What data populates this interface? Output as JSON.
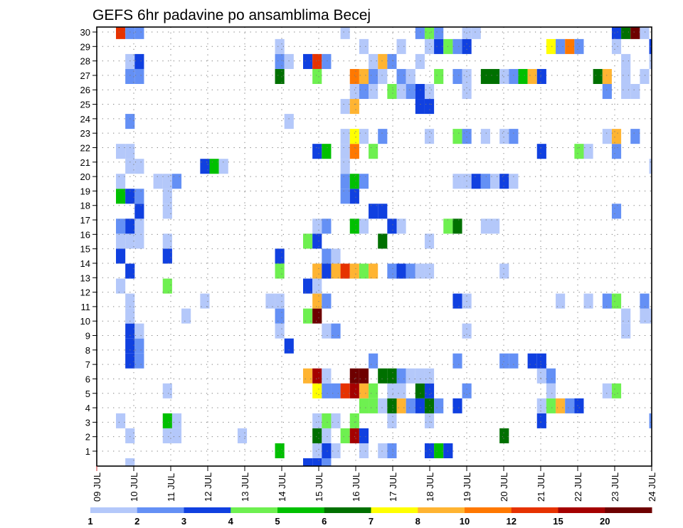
{
  "chart_data": {
    "type": "heatmap",
    "title": "GEFS 6hr padavine po ansamblima Becej",
    "xlabel": "",
    "ylabel": "",
    "x_step": "6hr",
    "x_ticks": [
      "09 JUL",
      "10 JUL",
      "11 JUL",
      "12 JUL",
      "13 JUL",
      "14 JUL",
      "15 JUL",
      "16 JUL",
      "17 JUL",
      "18 JUL",
      "19 JUL",
      "20 JUL",
      "21 JUL",
      "22 JUL",
      "23 JUL",
      "24 JUL"
    ],
    "y_ticks": [
      "1",
      "2",
      "3",
      "4",
      "5",
      "6",
      "7",
      "8",
      "9",
      "10",
      "11",
      "12",
      "13",
      "14",
      "15",
      "16",
      "17",
      "18",
      "19",
      "20",
      "21",
      "22",
      "23",
      "24",
      "25",
      "26",
      "27",
      "28",
      "29",
      "30"
    ],
    "ylim": [
      1,
      30
    ],
    "grid": true,
    "levels": [
      "1",
      "2",
      "3",
      "4",
      "5",
      "6",
      "7",
      "8",
      "10",
      "12",
      "15",
      "20"
    ],
    "colors": [
      "#b4c8fa",
      "#6490f5",
      "#1040e0",
      "#6ef050",
      "#00c000",
      "#007000",
      "#ffff00",
      "#ffb432",
      "#ff7800",
      "#e63200",
      "#a50000",
      "#6e0000"
    ],
    "cells_note": "per ensemble member row: [6hr-step index from 09 JUL 00Z, color level index]",
    "rows": {
      "30": [
        [
          2,
          9
        ],
        [
          3,
          1
        ],
        [
          4,
          1
        ],
        [
          26,
          0
        ],
        [
          34,
          1
        ],
        [
          35,
          3
        ],
        [
          36,
          1
        ],
        [
          39,
          0
        ],
        [
          40,
          0
        ],
        [
          55,
          2
        ],
        [
          56,
          5
        ],
        [
          57,
          11
        ],
        [
          58,
          0
        ]
      ],
      "29": [
        [
          19,
          0
        ],
        [
          28,
          0
        ],
        [
          32,
          0
        ],
        [
          35,
          0
        ],
        [
          36,
          2
        ],
        [
          37,
          3
        ],
        [
          38,
          1
        ],
        [
          39,
          2
        ],
        [
          48,
          6
        ],
        [
          49,
          1
        ],
        [
          50,
          8
        ],
        [
          51,
          1
        ],
        [
          55,
          0
        ],
        [
          59,
          2
        ]
      ],
      "28": [
        [
          3,
          0
        ],
        [
          4,
          2
        ],
        [
          19,
          1
        ],
        [
          20,
          0
        ],
        [
          22,
          2
        ],
        [
          23,
          9
        ],
        [
          24,
          1
        ],
        [
          29,
          0
        ],
        [
          30,
          7
        ],
        [
          31,
          1
        ],
        [
          34,
          0
        ],
        [
          56,
          0
        ],
        [
          59,
          0
        ]
      ],
      "27": [
        [
          3,
          1
        ],
        [
          4,
          1
        ],
        [
          19,
          5
        ],
        [
          23,
          3
        ],
        [
          27,
          8
        ],
        [
          28,
          7
        ],
        [
          29,
          1
        ],
        [
          30,
          0
        ],
        [
          32,
          1
        ],
        [
          33,
          0
        ],
        [
          36,
          3
        ],
        [
          38,
          1
        ],
        [
          39,
          0
        ],
        [
          41,
          5
        ],
        [
          42,
          5
        ],
        [
          43,
          0
        ],
        [
          44,
          1
        ],
        [
          45,
          4
        ],
        [
          46,
          7
        ],
        [
          47,
          2
        ],
        [
          53,
          5
        ],
        [
          54,
          7
        ],
        [
          56,
          0
        ],
        [
          58,
          0
        ]
      ],
      "26": [
        [
          27,
          0
        ],
        [
          28,
          1
        ],
        [
          29,
          0
        ],
        [
          31,
          3
        ],
        [
          32,
          0
        ],
        [
          33,
          1
        ],
        [
          34,
          2
        ],
        [
          35,
          0
        ],
        [
          39,
          0
        ],
        [
          54,
          1
        ],
        [
          56,
          0
        ],
        [
          57,
          0
        ]
      ],
      "25": [
        [
          26,
          0
        ],
        [
          27,
          7
        ],
        [
          34,
          2
        ],
        [
          35,
          2
        ]
      ],
      "24": [
        [
          3,
          1
        ],
        [
          20,
          0
        ]
      ],
      "23": [
        [
          26,
          0
        ],
        [
          27,
          6
        ],
        [
          28,
          0
        ],
        [
          30,
          1
        ],
        [
          35,
          0
        ],
        [
          38,
          3
        ],
        [
          39,
          1
        ],
        [
          41,
          0
        ],
        [
          43,
          0
        ],
        [
          44,
          1
        ],
        [
          54,
          0
        ],
        [
          55,
          7
        ],
        [
          57,
          1
        ]
      ],
      "22": [
        [
          2,
          0
        ],
        [
          3,
          0
        ],
        [
          23,
          2
        ],
        [
          24,
          4
        ],
        [
          26,
          0
        ],
        [
          27,
          8
        ],
        [
          29,
          3
        ],
        [
          47,
          2
        ],
        [
          51,
          3
        ],
        [
          52,
          0
        ],
        [
          55,
          1
        ]
      ],
      "21": [
        [
          3,
          0
        ],
        [
          4,
          0
        ],
        [
          11,
          2
        ],
        [
          12,
          4
        ],
        [
          13,
          0
        ],
        [
          26,
          0
        ],
        [
          59,
          0
        ]
      ],
      "20": [
        [
          2,
          0
        ],
        [
          6,
          0
        ],
        [
          7,
          0
        ],
        [
          8,
          1
        ],
        [
          26,
          1
        ],
        [
          27,
          4
        ],
        [
          28,
          1
        ],
        [
          38,
          0
        ],
        [
          39,
          0
        ],
        [
          40,
          2
        ],
        [
          41,
          1
        ],
        [
          42,
          0
        ],
        [
          43,
          2
        ],
        [
          44,
          0
        ]
      ],
      "19": [
        [
          2,
          4
        ],
        [
          3,
          2
        ],
        [
          4,
          1
        ],
        [
          7,
          0
        ],
        [
          26,
          1
        ],
        [
          27,
          2
        ]
      ],
      "18": [
        [
          4,
          2
        ],
        [
          7,
          0
        ],
        [
          29,
          2
        ],
        [
          30,
          2
        ],
        [
          55,
          1
        ]
      ],
      "17": [
        [
          2,
          1
        ],
        [
          3,
          2
        ],
        [
          4,
          0
        ],
        [
          23,
          0
        ],
        [
          24,
          1
        ],
        [
          27,
          4
        ],
        [
          28,
          0
        ],
        [
          31,
          2
        ],
        [
          32,
          0
        ],
        [
          37,
          3
        ],
        [
          38,
          5
        ],
        [
          41,
          0
        ],
        [
          42,
          0
        ]
      ],
      "16": [
        [
          2,
          0
        ],
        [
          3,
          0
        ],
        [
          4,
          0
        ],
        [
          7,
          0
        ],
        [
          22,
          3
        ],
        [
          23,
          2
        ],
        [
          30,
          5
        ],
        [
          35,
          0
        ]
      ],
      "15": [
        [
          2,
          2
        ],
        [
          7,
          2
        ],
        [
          19,
          2
        ],
        [
          24,
          1
        ],
        [
          25,
          0
        ]
      ],
      "14": [
        [
          3,
          2
        ],
        [
          19,
          3
        ],
        [
          23,
          7
        ],
        [
          24,
          2
        ],
        [
          25,
          7
        ],
        [
          26,
          9
        ],
        [
          27,
          7
        ],
        [
          28,
          3
        ],
        [
          29,
          7
        ],
        [
          31,
          1
        ],
        [
          32,
          2
        ],
        [
          33,
          1
        ],
        [
          34,
          0
        ],
        [
          35,
          0
        ],
        [
          43,
          0
        ]
      ],
      "13": [
        [
          2,
          0
        ],
        [
          7,
          3
        ],
        [
          22,
          2
        ],
        [
          23,
          0
        ]
      ],
      "12": [
        [
          3,
          0
        ],
        [
          11,
          0
        ],
        [
          18,
          0
        ],
        [
          19,
          0
        ],
        [
          23,
          7
        ],
        [
          24,
          1
        ],
        [
          38,
          2
        ],
        [
          39,
          0
        ],
        [
          49,
          0
        ],
        [
          52,
          0
        ],
        [
          54,
          1
        ],
        [
          55,
          3
        ],
        [
          58,
          1
        ]
      ],
      "11": [
        [
          3,
          0
        ],
        [
          9,
          0
        ],
        [
          19,
          1
        ],
        [
          22,
          3
        ],
        [
          23,
          11
        ],
        [
          56,
          0
        ],
        [
          58,
          0
        ],
        [
          59,
          0
        ]
      ],
      "10": [
        [
          3,
          2
        ],
        [
          4,
          0
        ],
        [
          19,
          0
        ],
        [
          24,
          0
        ],
        [
          25,
          1
        ],
        [
          39,
          0
        ],
        [
          56,
          0
        ]
      ],
      "9": [
        [
          3,
          2
        ],
        [
          4,
          1
        ],
        [
          20,
          2
        ]
      ],
      "8": [
        [
          3,
          2
        ],
        [
          4,
          1
        ],
        [
          29,
          1
        ],
        [
          38,
          1
        ],
        [
          43,
          1
        ],
        [
          44,
          1
        ],
        [
          46,
          2
        ],
        [
          47,
          2
        ]
      ],
      "7": [
        [
          22,
          7
        ],
        [
          23,
          10
        ],
        [
          24,
          0
        ],
        [
          27,
          11
        ],
        [
          28,
          11
        ],
        [
          30,
          5
        ],
        [
          31,
          5
        ],
        [
          32,
          1
        ],
        [
          33,
          0
        ],
        [
          34,
          0
        ],
        [
          35,
          0
        ],
        [
          47,
          0
        ],
        [
          48,
          1
        ]
      ],
      "6": [
        [
          7,
          0
        ],
        [
          23,
          6
        ],
        [
          24,
          1
        ],
        [
          25,
          1
        ],
        [
          26,
          9
        ],
        [
          27,
          10
        ],
        [
          28,
          7
        ],
        [
          29,
          3
        ],
        [
          31,
          0
        ],
        [
          32,
          0
        ],
        [
          34,
          5
        ],
        [
          35,
          2
        ],
        [
          39,
          1
        ],
        [
          48,
          0
        ],
        [
          54,
          0
        ],
        [
          55,
          3
        ]
      ],
      "5": [
        [
          28,
          3
        ],
        [
          29,
          3
        ],
        [
          30,
          0
        ],
        [
          31,
          5
        ],
        [
          32,
          7
        ],
        [
          33,
          1
        ],
        [
          34,
          2
        ],
        [
          35,
          5
        ],
        [
          36,
          1
        ],
        [
          38,
          2
        ],
        [
          47,
          0
        ],
        [
          48,
          3
        ],
        [
          49,
          7
        ],
        [
          50,
          1
        ],
        [
          51,
          2
        ]
      ],
      "4": [
        [
          2,
          0
        ],
        [
          7,
          4
        ],
        [
          8,
          0
        ],
        [
          23,
          0
        ],
        [
          24,
          3
        ],
        [
          25,
          0
        ],
        [
          27,
          3
        ],
        [
          31,
          0
        ],
        [
          35,
          0
        ],
        [
          47,
          2
        ],
        [
          59,
          1
        ]
      ],
      "3": [
        [
          3,
          0
        ],
        [
          7,
          0
        ],
        [
          8,
          0
        ],
        [
          15,
          0
        ],
        [
          23,
          5
        ],
        [
          24,
          0
        ],
        [
          26,
          3
        ],
        [
          27,
          10
        ],
        [
          28,
          2
        ],
        [
          43,
          5
        ]
      ],
      "2": [
        [
          19,
          4
        ],
        [
          23,
          0
        ],
        [
          24,
          2
        ],
        [
          25,
          0
        ],
        [
          28,
          0
        ],
        [
          30,
          0
        ],
        [
          31,
          1
        ],
        [
          35,
          2
        ],
        [
          36,
          4
        ],
        [
          37,
          2
        ]
      ],
      "1": [
        [
          3,
          0
        ],
        [
          22,
          2
        ],
        [
          23,
          2
        ],
        [
          24,
          1
        ]
      ]
    }
  }
}
